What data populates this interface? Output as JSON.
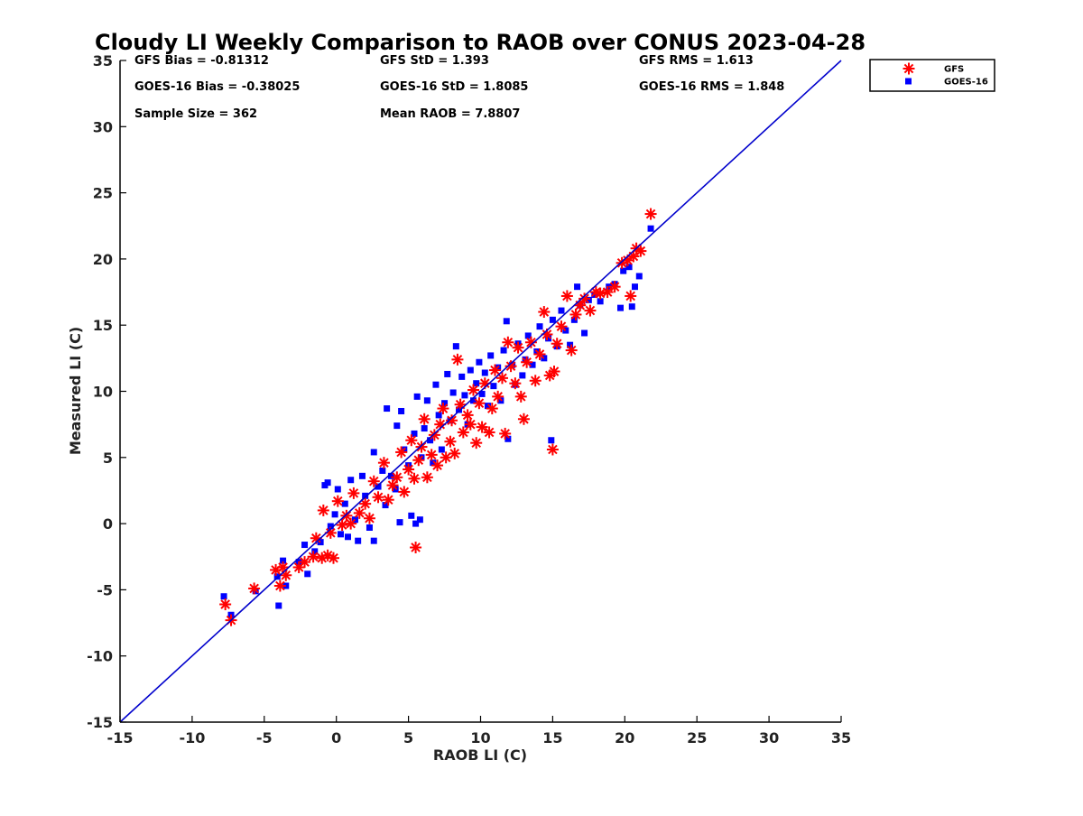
{
  "chart_data": {
    "type": "scatter",
    "title": "Cloudy LI Weekly Comparison to RAOB over CONUS 2023-04-28",
    "xlabel": "RAOB LI (C)",
    "ylabel": "Measured LI (C)",
    "xlim": [
      -15,
      35
    ],
    "ylim": [
      -15,
      35
    ],
    "xticks": [
      "-15",
      "-10",
      "-5",
      "0",
      "5",
      "10",
      "15",
      "20",
      "25",
      "30",
      "35"
    ],
    "yticks": [
      "-15",
      "-10",
      "-5",
      "0",
      "5",
      "10",
      "15",
      "20",
      "25",
      "30",
      "35"
    ],
    "grid": false,
    "legend_position": "top-right, outside plot",
    "stats": [
      [
        "GFS Bias = -0.81312",
        "GFS StD = 1.393",
        "GFS RMS = 1.613"
      ],
      [
        "GOES-16 Bias = -0.38025",
        "GOES-16 StD = 1.8085",
        "GOES-16 RMS = 1.848"
      ],
      [
        "Sample Size = 362",
        "Mean RAOB = 7.8807",
        ""
      ]
    ],
    "reference_line": {
      "x": [
        -15,
        35
      ],
      "y": [
        -15,
        35
      ],
      "color": "#0000cc"
    },
    "series": [
      {
        "name": "GFS",
        "marker": "asterisk",
        "color": "#ff0000",
        "points": [
          [
            -7.7,
            -6.1
          ],
          [
            -7.3,
            -7.3
          ],
          [
            -5.7,
            -4.9
          ],
          [
            -4.2,
            -3.5
          ],
          [
            -3.9,
            -4.7
          ],
          [
            -3.7,
            -3.3
          ],
          [
            -3.5,
            -3.9
          ],
          [
            -2.6,
            -3.3
          ],
          [
            -2.2,
            -2.9
          ],
          [
            -1.6,
            -2.5
          ],
          [
            -1.4,
            -1.1
          ],
          [
            -1.0,
            -2.6
          ],
          [
            -0.9,
            1.0
          ],
          [
            -0.6,
            -2.4
          ],
          [
            -0.4,
            -0.7
          ],
          [
            -0.2,
            -2.6
          ],
          [
            0.1,
            1.7
          ],
          [
            0.4,
            -0.1
          ],
          [
            0.7,
            0.6
          ],
          [
            1.0,
            0.0
          ],
          [
            1.2,
            2.3
          ],
          [
            1.6,
            0.8
          ],
          [
            2.0,
            1.5
          ],
          [
            2.3,
            0.4
          ],
          [
            2.6,
            3.2
          ],
          [
            2.9,
            2.0
          ],
          [
            3.3,
            4.6
          ],
          [
            3.6,
            1.8
          ],
          [
            3.9,
            2.9
          ],
          [
            4.2,
            3.5
          ],
          [
            4.5,
            5.4
          ],
          [
            4.7,
            2.4
          ],
          [
            5.0,
            4.1
          ],
          [
            5.2,
            6.3
          ],
          [
            5.4,
            3.4
          ],
          [
            5.5,
            -1.8
          ],
          [
            5.7,
            4.8
          ],
          [
            5.9,
            5.8
          ],
          [
            6.1,
            7.9
          ],
          [
            6.3,
            3.5
          ],
          [
            6.6,
            5.2
          ],
          [
            6.8,
            6.7
          ],
          [
            7.0,
            4.4
          ],
          [
            7.2,
            7.5
          ],
          [
            7.4,
            8.7
          ],
          [
            7.6,
            5.0
          ],
          [
            7.9,
            6.2
          ],
          [
            8.0,
            7.8
          ],
          [
            8.2,
            5.3
          ],
          [
            8.4,
            12.4
          ],
          [
            8.6,
            9.0
          ],
          [
            8.8,
            6.9
          ],
          [
            9.1,
            8.2
          ],
          [
            9.3,
            7.5
          ],
          [
            9.5,
            10.1
          ],
          [
            9.7,
            6.1
          ],
          [
            9.9,
            9.1
          ],
          [
            10.1,
            7.3
          ],
          [
            10.3,
            10.6
          ],
          [
            10.6,
            6.9
          ],
          [
            10.8,
            8.7
          ],
          [
            11.0,
            11.6
          ],
          [
            11.2,
            9.6
          ],
          [
            11.5,
            11.0
          ],
          [
            11.7,
            6.8
          ],
          [
            11.9,
            13.7
          ],
          [
            12.1,
            11.9
          ],
          [
            12.4,
            10.6
          ],
          [
            12.6,
            13.3
          ],
          [
            12.8,
            9.6
          ],
          [
            13.0,
            7.9
          ],
          [
            13.2,
            12.2
          ],
          [
            13.5,
            13.7
          ],
          [
            13.8,
            10.8
          ],
          [
            14.1,
            12.8
          ],
          [
            14.4,
            16.0
          ],
          [
            14.6,
            14.3
          ],
          [
            14.8,
            11.2
          ],
          [
            15.0,
            5.6
          ],
          [
            15.1,
            11.5
          ],
          [
            15.3,
            13.6
          ],
          [
            15.6,
            14.9
          ],
          [
            16.0,
            17.2
          ],
          [
            16.3,
            13.1
          ],
          [
            16.6,
            15.8
          ],
          [
            16.9,
            16.5
          ],
          [
            17.2,
            17.0
          ],
          [
            17.6,
            16.1
          ],
          [
            18.0,
            17.5
          ],
          [
            18.3,
            17.4
          ],
          [
            18.8,
            17.5
          ],
          [
            19.3,
            17.9
          ],
          [
            19.8,
            19.7
          ],
          [
            20.2,
            19.9
          ],
          [
            20.4,
            17.2
          ],
          [
            20.6,
            20.2
          ],
          [
            20.8,
            20.8
          ],
          [
            21.1,
            20.6
          ],
          [
            21.8,
            23.4
          ]
        ]
      },
      {
        "name": "GOES-16",
        "marker": "square",
        "color": "#0000ff",
        "points": [
          [
            -7.8,
            -5.5
          ],
          [
            -7.3,
            -6.9
          ],
          [
            -5.6,
            -5.1
          ],
          [
            -4.1,
            -4.0
          ],
          [
            -4.0,
            -6.2
          ],
          [
            -3.7,
            -2.8
          ],
          [
            -3.5,
            -4.7
          ],
          [
            -2.6,
            -2.9
          ],
          [
            -2.2,
            -1.6
          ],
          [
            -2.0,
            -3.8
          ],
          [
            -1.5,
            -2.1
          ],
          [
            -1.1,
            -1.4
          ],
          [
            -0.8,
            2.9
          ],
          [
            -0.6,
            3.1
          ],
          [
            -0.4,
            -0.2
          ],
          [
            -0.1,
            0.7
          ],
          [
            0.1,
            2.6
          ],
          [
            0.3,
            -0.8
          ],
          [
            0.6,
            1.5
          ],
          [
            0.8,
            -1.0
          ],
          [
            1.0,
            3.3
          ],
          [
            1.3,
            0.3
          ],
          [
            1.5,
            -1.3
          ],
          [
            1.8,
            3.6
          ],
          [
            2.0,
            2.1
          ],
          [
            2.3,
            -0.3
          ],
          [
            2.6,
            5.4
          ],
          [
            2.6,
            -1.3
          ],
          [
            2.9,
            2.8
          ],
          [
            3.2,
            4.0
          ],
          [
            3.4,
            1.4
          ],
          [
            3.5,
            8.7
          ],
          [
            3.8,
            3.6
          ],
          [
            4.1,
            2.6
          ],
          [
            4.2,
            7.4
          ],
          [
            4.4,
            0.1
          ],
          [
            4.5,
            8.5
          ],
          [
            4.7,
            5.6
          ],
          [
            5.0,
            4.4
          ],
          [
            5.2,
            0.6
          ],
          [
            5.4,
            6.8
          ],
          [
            5.5,
            0.0
          ],
          [
            5.6,
            9.6
          ],
          [
            5.8,
            0.3
          ],
          [
            5.9,
            5.0
          ],
          [
            6.1,
            7.2
          ],
          [
            6.3,
            9.3
          ],
          [
            6.5,
            6.3
          ],
          [
            6.7,
            4.6
          ],
          [
            6.9,
            10.5
          ],
          [
            7.1,
            8.2
          ],
          [
            7.3,
            5.6
          ],
          [
            7.5,
            9.1
          ],
          [
            7.7,
            11.3
          ],
          [
            7.9,
            7.8
          ],
          [
            8.1,
            9.9
          ],
          [
            8.3,
            13.4
          ],
          [
            8.5,
            8.6
          ],
          [
            8.7,
            11.1
          ],
          [
            8.9,
            9.7
          ],
          [
            9.1,
            7.5
          ],
          [
            9.3,
            11.6
          ],
          [
            9.5,
            9.3
          ],
          [
            9.7,
            10.6
          ],
          [
            9.9,
            12.2
          ],
          [
            10.1,
            9.8
          ],
          [
            10.3,
            11.4
          ],
          [
            10.5,
            8.9
          ],
          [
            10.7,
            12.7
          ],
          [
            10.9,
            10.4
          ],
          [
            11.2,
            11.8
          ],
          [
            11.4,
            9.3
          ],
          [
            11.6,
            13.1
          ],
          [
            11.8,
            15.3
          ],
          [
            11.9,
            6.4
          ],
          [
            12.2,
            12.0
          ],
          [
            12.4,
            10.5
          ],
          [
            12.6,
            13.6
          ],
          [
            12.9,
            11.2
          ],
          [
            13.1,
            12.4
          ],
          [
            13.3,
            14.2
          ],
          [
            13.6,
            12.0
          ],
          [
            13.9,
            13.0
          ],
          [
            14.1,
            14.9
          ],
          [
            14.4,
            12.5
          ],
          [
            14.7,
            14.0
          ],
          [
            14.9,
            6.3
          ],
          [
            15.0,
            15.4
          ],
          [
            15.3,
            13.4
          ],
          [
            15.6,
            16.1
          ],
          [
            15.9,
            14.6
          ],
          [
            16.2,
            13.5
          ],
          [
            16.5,
            15.4
          ],
          [
            16.7,
            17.9
          ],
          [
            16.9,
            16.5
          ],
          [
            17.2,
            14.4
          ],
          [
            17.5,
            16.9
          ],
          [
            17.9,
            17.3
          ],
          [
            18.3,
            16.8
          ],
          [
            18.9,
            17.9
          ],
          [
            19.3,
            18.1
          ],
          [
            19.7,
            16.3
          ],
          [
            19.9,
            19.1
          ],
          [
            20.3,
            19.4
          ],
          [
            20.5,
            16.4
          ],
          [
            20.7,
            17.9
          ],
          [
            21.0,
            18.7
          ],
          [
            21.8,
            22.3
          ]
        ]
      }
    ]
  }
}
